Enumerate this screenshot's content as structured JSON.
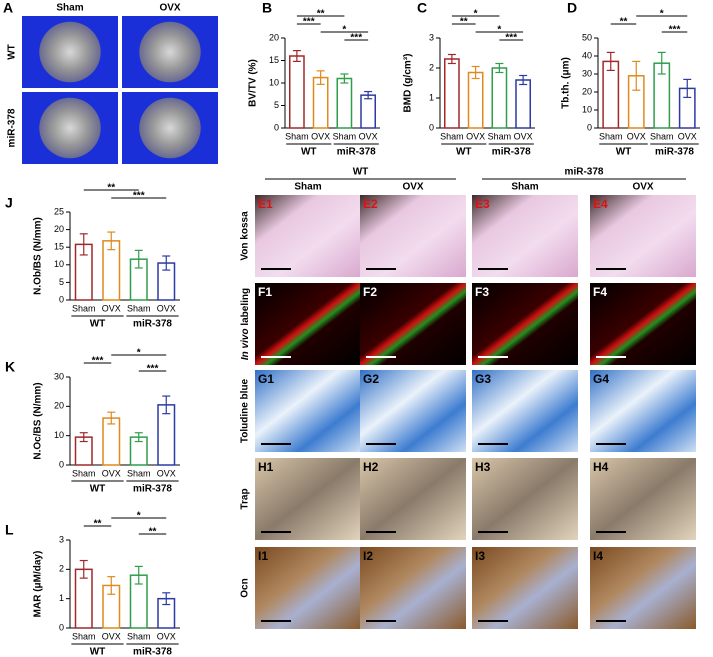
{
  "panel_a": {
    "letter": "A",
    "columns": [
      "Sham",
      "OVX"
    ],
    "rows": [
      "WT",
      "miR-378"
    ]
  },
  "histology": {
    "groups": [
      "WT",
      "miR-378"
    ],
    "columns": [
      "Sham",
      "OVX",
      "Sham",
      "OVX"
    ],
    "rows": [
      {
        "label": "Von kossa",
        "panels": [
          "E1",
          "E2",
          "E3",
          "E4"
        ]
      },
      {
        "label": [
          "In vivo",
          " labeling"
        ],
        "panels": [
          "F1",
          "F2",
          "F3",
          "F4"
        ]
      },
      {
        "label": "Toludine blue",
        "panels": [
          "G1",
          "G2",
          "G3",
          "G4"
        ]
      },
      {
        "label": "Trap",
        "panels": [
          "H1",
          "H2",
          "H3",
          "H4"
        ]
      },
      {
        "label": "Ocn",
        "panels": [
          "I1",
          "I2",
          "I3",
          "I4"
        ]
      }
    ]
  },
  "chart_data": [
    {
      "type": "bar",
      "letter": "B",
      "ylabel": "BV/TV (%)",
      "categories": [
        "Sham",
        "OVX",
        "Sham",
        "OVX"
      ],
      "groups": [
        "WT",
        "miR-378"
      ],
      "colors": [
        "#a0282a",
        "#e0891c",
        "#2e9e4a",
        "#2c3aa6"
      ],
      "values": [
        16,
        11.2,
        11,
        7.3
      ],
      "errors": [
        1.2,
        1.5,
        1.0,
        0.8
      ],
      "ylim": [
        0,
        20
      ],
      "yticks": [
        0,
        5,
        10,
        15,
        20
      ],
      "significance": [
        {
          "pair": [
            0,
            2
          ],
          "label": "**"
        },
        {
          "pair": [
            0,
            1
          ],
          "label": "***"
        },
        {
          "pair": [
            1,
            3
          ],
          "label": "*"
        },
        {
          "pair": [
            2,
            3
          ],
          "label": "***"
        }
      ]
    },
    {
      "type": "bar",
      "letter": "C",
      "ylabel": "BMD (g/cm³)",
      "categories": [
        "Sham",
        "OVX",
        "Sham",
        "OVX"
      ],
      "groups": [
        "WT",
        "miR-378"
      ],
      "colors": [
        "#a0282a",
        "#e0891c",
        "#2e9e4a",
        "#2c3aa6"
      ],
      "values": [
        2.3,
        1.85,
        2.0,
        1.6
      ],
      "errors": [
        0.15,
        0.2,
        0.15,
        0.15
      ],
      "ylim": [
        0,
        3
      ],
      "yticks": [
        0,
        1,
        2,
        3
      ],
      "significance": [
        {
          "pair": [
            0,
            2
          ],
          "label": "*"
        },
        {
          "pair": [
            0,
            1
          ],
          "label": "**"
        },
        {
          "pair": [
            1,
            3
          ],
          "label": "*"
        },
        {
          "pair": [
            2,
            3
          ],
          "label": "***"
        }
      ]
    },
    {
      "type": "bar",
      "letter": "D",
      "ylabel": "Tb.th. (μm)",
      "categories": [
        "Sham",
        "OVX",
        "Sham",
        "OVX"
      ],
      "groups": [
        "WT",
        "miR-378"
      ],
      "colors": [
        "#a0282a",
        "#e0891c",
        "#2e9e4a",
        "#2c3aa6"
      ],
      "values": [
        37,
        29,
        36,
        22
      ],
      "errors": [
        5,
        8,
        6,
        5
      ],
      "ylim": [
        0,
        50
      ],
      "yticks": [
        0,
        10,
        20,
        30,
        40,
        50
      ],
      "significance": [
        {
          "pair": [
            1,
            3
          ],
          "label": "*"
        },
        {
          "pair": [
            0,
            1
          ],
          "label": "**"
        },
        {
          "pair": [
            2,
            3
          ],
          "label": "***"
        }
      ]
    },
    {
      "type": "bar",
      "letter": "J",
      "ylabel": "N.Ob/BS (N/mm)",
      "categories": [
        "Sham",
        "OVX",
        "Sham",
        "OVX"
      ],
      "groups": [
        "WT",
        "miR-378"
      ],
      "colors": [
        "#a0282a",
        "#e0891c",
        "#2e9e4a",
        "#2c3aa6"
      ],
      "values": [
        15.8,
        16.8,
        11.6,
        10.5
      ],
      "errors": [
        3,
        2.5,
        2.5,
        2
      ],
      "ylim": [
        0,
        25
      ],
      "yticks": [
        0,
        5,
        10,
        15,
        20,
        25
      ],
      "significance": [
        {
          "pair": [
            0,
            2
          ],
          "label": "**"
        },
        {
          "pair": [
            1,
            3
          ],
          "label": "***"
        }
      ]
    },
    {
      "type": "bar",
      "letter": "K",
      "ylabel": "N.Oc/BS (N/mm)",
      "categories": [
        "Sham",
        "OVX",
        "Sham",
        "OVX"
      ],
      "groups": [
        "WT",
        "miR-378"
      ],
      "colors": [
        "#a0282a",
        "#e0891c",
        "#2e9e4a",
        "#2c3aa6"
      ],
      "values": [
        9.5,
        16,
        9.5,
        20.5
      ],
      "errors": [
        1.5,
        2,
        1.5,
        3
      ],
      "ylim": [
        0,
        30
      ],
      "yticks": [
        0,
        10,
        20,
        30
      ],
      "significance": [
        {
          "pair": [
            1,
            3
          ],
          "label": "*"
        },
        {
          "pair": [
            0,
            1
          ],
          "label": "***"
        },
        {
          "pair": [
            2,
            3
          ],
          "label": "***"
        }
      ]
    },
    {
      "type": "bar",
      "letter": "L",
      "ylabel": "MAR (μM/day)",
      "categories": [
        "Sham",
        "OVX",
        "Sham",
        "OVX"
      ],
      "groups": [
        "WT",
        "miR-378"
      ],
      "colors": [
        "#a0282a",
        "#e0891c",
        "#2e9e4a",
        "#2c3aa6"
      ],
      "values": [
        2.0,
        1.45,
        1.8,
        1.0
      ],
      "errors": [
        0.3,
        0.3,
        0.3,
        0.2
      ],
      "ylim": [
        0,
        3
      ],
      "yticks": [
        0,
        1,
        2,
        3
      ],
      "significance": [
        {
          "pair": [
            1,
            3
          ],
          "label": "*"
        },
        {
          "pair": [
            0,
            1
          ],
          "label": "**"
        },
        {
          "pair": [
            2,
            3
          ],
          "label": "**"
        }
      ]
    }
  ]
}
